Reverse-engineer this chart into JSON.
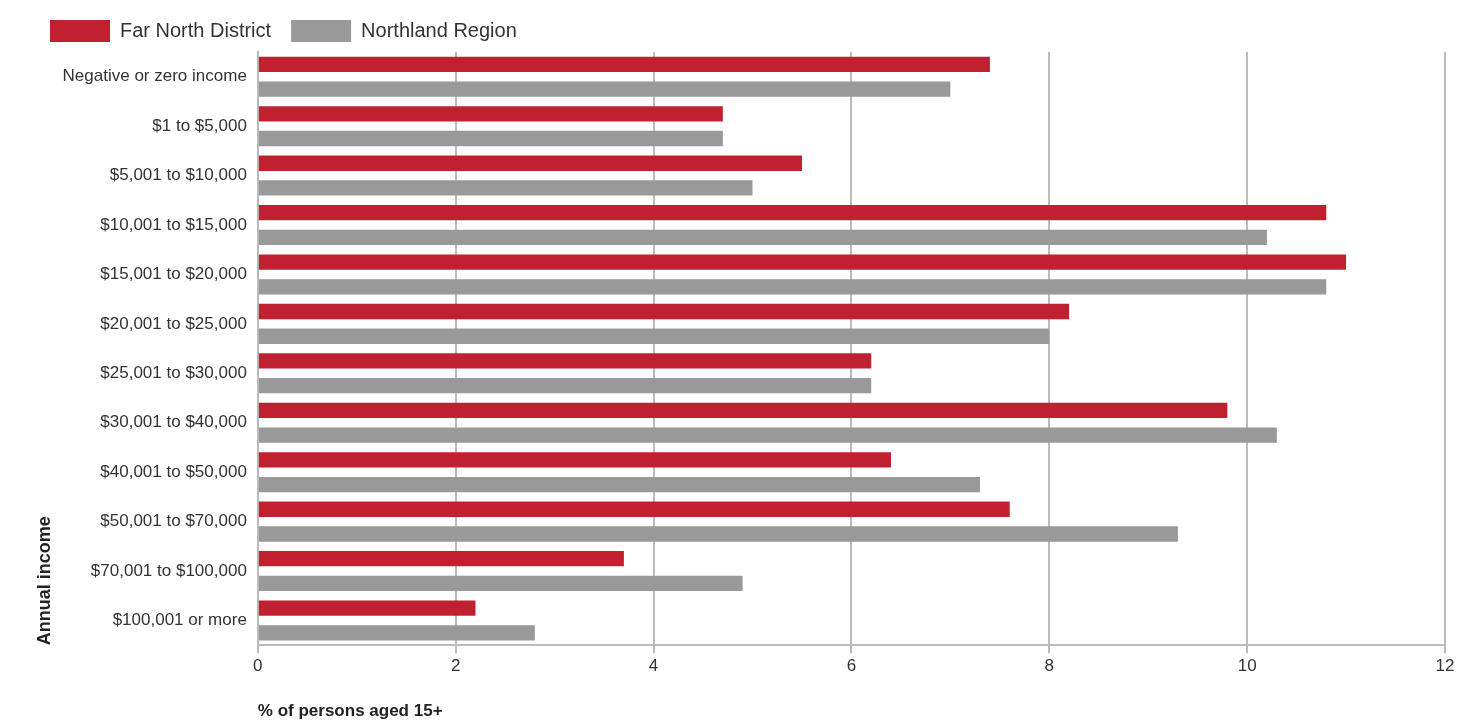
{
  "chart_data": {
    "type": "bar",
    "orientation": "horizontal",
    "xlabel": "% of persons aged 15+",
    "ylabel": "Annual income",
    "categories": [
      "Negative or zero income",
      "$1 to $5,000",
      "$5,001 to $10,000",
      "$10,001 to $15,000",
      "$15,001 to $20,000",
      "$20,001 to $25,000",
      "$25,001 to $30,000",
      "$30,001 to $40,000",
      "$40,001 to $50,000",
      "$50,001 to $70,000",
      "$70,001 to $100,000",
      "$100,001 or more"
    ],
    "series": [
      {
        "name": "Far North District",
        "color": "#c0202f",
        "values": [
          7.4,
          4.7,
          5.5,
          10.8,
          11.0,
          8.2,
          6.2,
          9.8,
          6.4,
          7.6,
          3.7,
          2.2
        ]
      },
      {
        "name": "Northland Region",
        "color": "#999999",
        "values": [
          7.0,
          4.7,
          5.0,
          10.2,
          10.8,
          8.0,
          6.2,
          10.3,
          7.3,
          9.3,
          4.9,
          2.8
        ]
      }
    ],
    "xlim": [
      0,
      12
    ],
    "xticks": [
      0,
      2,
      4,
      6,
      8,
      10,
      12
    ],
    "grid": "x",
    "legend": "top left"
  }
}
